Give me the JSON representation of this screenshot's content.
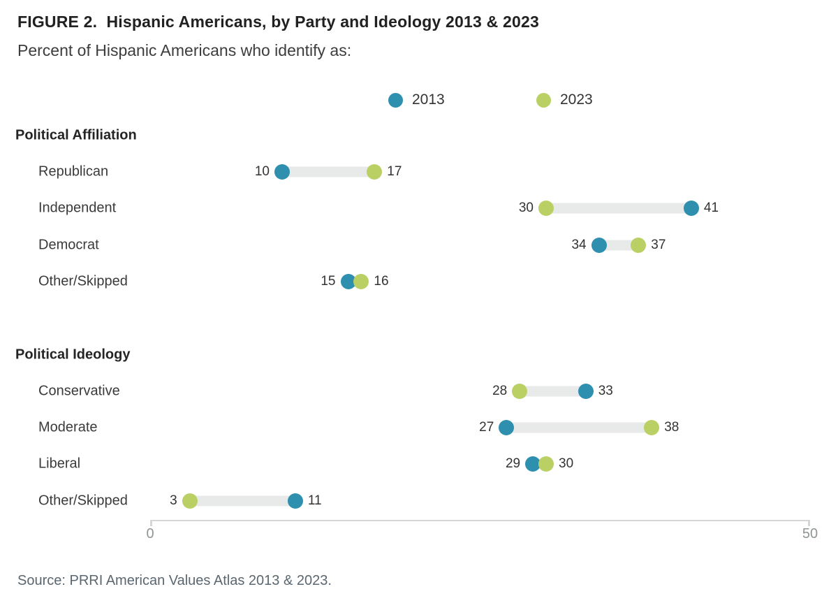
{
  "title": "FIGURE 2.  Hispanic Americans, by Party and Ideology 2013 & 2023",
  "subtitle": "Percent of Hispanic Americans who identify as:",
  "legend": {
    "items": [
      {
        "label": "2013",
        "color": "#2e8fae"
      },
      {
        "label": "2023",
        "color": "#bad065"
      }
    ]
  },
  "chart_data": {
    "type": "dumbbell",
    "series": [
      "2013",
      "2023"
    ],
    "colors": {
      "2013": "#2e8fae",
      "2023": "#bad065"
    },
    "xlim": [
      0,
      50
    ],
    "ticks": [
      0,
      50
    ],
    "grid": false,
    "legend_position": "top-center",
    "sections": [
      {
        "title": "Political Affiliation",
        "rows": [
          {
            "label": "Republican",
            "values": {
              "2013": 10,
              "2023": 17
            }
          },
          {
            "label": "Independent",
            "values": {
              "2013": 41,
              "2023": 30
            }
          },
          {
            "label": "Democrat",
            "values": {
              "2013": 34,
              "2023": 37
            }
          },
          {
            "label": "Other/Skipped",
            "values": {
              "2013": 15,
              "2023": 16
            }
          }
        ]
      },
      {
        "title": "Political Ideology",
        "rows": [
          {
            "label": "Conservative",
            "values": {
              "2013": 33,
              "2023": 28
            }
          },
          {
            "label": "Moderate",
            "values": {
              "2013": 27,
              "2023": 38
            }
          },
          {
            "label": "Liberal",
            "values": {
              "2013": 29,
              "2023": 30
            }
          },
          {
            "label": "Other/Skipped",
            "values": {
              "2013": 11,
              "2023": 3
            }
          }
        ]
      }
    ]
  },
  "source": "Source: PRRI American Values Atlas 2013 & 2023."
}
